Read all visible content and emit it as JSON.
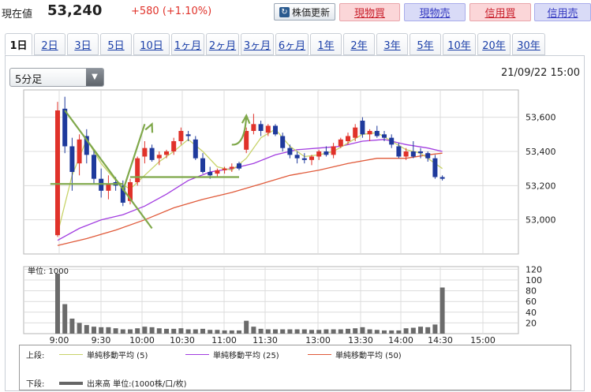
{
  "quote": {
    "label": "現在値",
    "price": "53,240",
    "change": "+580 (+1.10%)",
    "refresh_label": "株価更新",
    "buttons": [
      "現物買",
      "現物売",
      "信用買",
      "信用売"
    ]
  },
  "tabs": [
    {
      "label": "1日",
      "active": true
    },
    {
      "label": "2日"
    },
    {
      "label": "3日"
    },
    {
      "label": "5日"
    },
    {
      "label": "10日"
    },
    {
      "label": "1ヶ月"
    },
    {
      "label": "2ヶ月"
    },
    {
      "label": "3ヶ月"
    },
    {
      "label": "6ヶ月"
    },
    {
      "label": "1年"
    },
    {
      "label": "2年"
    },
    {
      "label": "3年"
    },
    {
      "label": "5年"
    },
    {
      "label": "10年"
    },
    {
      "label": "20年"
    },
    {
      "label": "30年"
    }
  ],
  "interval": "5分足",
  "datetime": "21/09/22 15:00",
  "volume_unit_label": "単位: 1000",
  "legend": {
    "upper_label": "上段:",
    "lower_label": "下段:",
    "items": [
      {
        "name": "単純移動平均 (5)",
        "color": "#c8d36a"
      },
      {
        "name": "単純移動平均 (25)",
        "color": "#a23de0"
      },
      {
        "name": "単純移動平均 (50)",
        "color": "#e05a3a"
      }
    ],
    "volume_item": "出来高 単位:(1000株/口/枚)"
  },
  "chart_data": {
    "type": "candlestick",
    "up_color": "#e0322a",
    "down_color": "#1f3a9c",
    "x_ticks": [
      "9:00",
      "9:30",
      "10:00",
      "10:30",
      "11:00",
      "11:30",
      "13:00",
      "13:30",
      "14:00",
      "14:30",
      "15:00"
    ],
    "y_ticks": [
      53000,
      53200,
      53400,
      53600
    ],
    "y_range": [
      52800,
      53760
    ],
    "volume_ticks": [
      20,
      40,
      60,
      80,
      100,
      120
    ],
    "volume_range": [
      0,
      125
    ],
    "candles": [
      {
        "o": 52910,
        "h": 53690,
        "l": 52900,
        "c": 53640
      },
      {
        "o": 53650,
        "h": 53720,
        "l": 53390,
        "c": 53430
      },
      {
        "o": 53430,
        "h": 53480,
        "l": 53170,
        "c": 53280
      },
      {
        "o": 53330,
        "h": 53500,
        "l": 53260,
        "c": 53470
      },
      {
        "o": 53490,
        "h": 53530,
        "l": 53330,
        "c": 53380
      },
      {
        "o": 53380,
        "h": 53410,
        "l": 53210,
        "c": 53240
      },
      {
        "o": 53240,
        "h": 53300,
        "l": 53130,
        "c": 53170
      },
      {
        "o": 53170,
        "h": 53260,
        "l": 53120,
        "c": 53210
      },
      {
        "o": 53220,
        "h": 53250,
        "l": 53170,
        "c": 53200
      },
      {
        "o": 53200,
        "h": 53230,
        "l": 53080,
        "c": 53100
      },
      {
        "o": 53110,
        "h": 53240,
        "l": 53090,
        "c": 53220
      },
      {
        "o": 53220,
        "h": 53370,
        "l": 53200,
        "c": 53360
      },
      {
        "o": 53370,
        "h": 53460,
        "l": 53330,
        "c": 53420
      },
      {
        "o": 53420,
        "h": 53440,
        "l": 53340,
        "c": 53350
      },
      {
        "o": 53360,
        "h": 53400,
        "l": 53320,
        "c": 53380
      },
      {
        "o": 53380,
        "h": 53410,
        "l": 53360,
        "c": 53400
      },
      {
        "o": 53400,
        "h": 53480,
        "l": 53380,
        "c": 53460
      },
      {
        "o": 53460,
        "h": 53540,
        "l": 53440,
        "c": 53520
      },
      {
        "o": 53500,
        "h": 53520,
        "l": 53460,
        "c": 53490
      },
      {
        "o": 53470,
        "h": 53490,
        "l": 53350,
        "c": 53360
      },
      {
        "o": 53360,
        "h": 53390,
        "l": 53270,
        "c": 53280
      },
      {
        "o": 53280,
        "h": 53310,
        "l": 53240,
        "c": 53260
      },
      {
        "o": 53270,
        "h": 53300,
        "l": 53250,
        "c": 53290
      },
      {
        "o": 53290,
        "h": 53310,
        "l": 53270,
        "c": 53300
      },
      {
        "o": 53300,
        "h": 53330,
        "l": 53280,
        "c": 53310
      },
      {
        "o": 53330,
        "h": 53340,
        "l": 53290,
        "c": 53300
      },
      {
        "o": 53410,
        "h": 53540,
        "l": 53390,
        "c": 53520
      },
      {
        "o": 53520,
        "h": 53620,
        "l": 53500,
        "c": 53560
      },
      {
        "o": 53560,
        "h": 53580,
        "l": 53490,
        "c": 53520
      },
      {
        "o": 53510,
        "h": 53560,
        "l": 53490,
        "c": 53550
      },
      {
        "o": 53550,
        "h": 53560,
        "l": 53490,
        "c": 53500
      },
      {
        "o": 53490,
        "h": 53510,
        "l": 53400,
        "c": 53420
      },
      {
        "o": 53420,
        "h": 53440,
        "l": 53360,
        "c": 53380
      },
      {
        "o": 53380,
        "h": 53400,
        "l": 53330,
        "c": 53360
      },
      {
        "o": 53360,
        "h": 53390,
        "l": 53330,
        "c": 53350
      },
      {
        "o": 53350,
        "h": 53380,
        "l": 53320,
        "c": 53370
      },
      {
        "o": 53370,
        "h": 53410,
        "l": 53350,
        "c": 53400
      },
      {
        "o": 53400,
        "h": 53430,
        "l": 53370,
        "c": 53380
      },
      {
        "o": 53380,
        "h": 53450,
        "l": 53360,
        "c": 53430
      },
      {
        "o": 53430,
        "h": 53480,
        "l": 53420,
        "c": 53470
      },
      {
        "o": 53460,
        "h": 53510,
        "l": 53440,
        "c": 53490
      },
      {
        "o": 53480,
        "h": 53560,
        "l": 53460,
        "c": 53540
      },
      {
        "o": 53580,
        "h": 53600,
        "l": 53480,
        "c": 53500
      },
      {
        "o": 53500,
        "h": 53530,
        "l": 53460,
        "c": 53520
      },
      {
        "o": 53520,
        "h": 53550,
        "l": 53480,
        "c": 53490
      },
      {
        "o": 53500,
        "h": 53520,
        "l": 53460,
        "c": 53480
      },
      {
        "o": 53480,
        "h": 53500,
        "l": 53420,
        "c": 53440
      },
      {
        "o": 53430,
        "h": 53450,
        "l": 53360,
        "c": 53370
      },
      {
        "o": 53370,
        "h": 53420,
        "l": 53350,
        "c": 53400
      },
      {
        "o": 53400,
        "h": 53460,
        "l": 53360,
        "c": 53370
      },
      {
        "o": 53400,
        "h": 53420,
        "l": 53360,
        "c": 53390
      },
      {
        "o": 53390,
        "h": 53400,
        "l": 53340,
        "c": 53360
      },
      {
        "o": 53360,
        "h": 53380,
        "l": 53240,
        "c": 53250
      },
      {
        "o": 53250,
        "h": 53260,
        "l": 53230,
        "c": 53240
      }
    ],
    "volume": [
      112,
      55,
      28,
      20,
      16,
      13,
      12,
      12,
      10,
      8,
      8,
      10,
      13,
      12,
      10,
      9,
      9,
      10,
      8,
      8,
      9,
      7,
      7,
      6,
      6,
      6,
      24,
      13,
      9,
      8,
      8,
      8,
      8,
      8,
      8,
      7,
      7,
      8,
      8,
      8,
      9,
      10,
      12,
      8,
      7,
      6,
      6,
      6,
      10,
      11,
      13,
      12,
      17,
      86
    ],
    "ma5": [
      [
        0,
        52920
      ],
      [
        2,
        53260
      ],
      [
        4,
        53470
      ],
      [
        6,
        53330
      ],
      [
        8,
        53230
      ],
      [
        10,
        53180
      ],
      [
        12,
        53260
      ],
      [
        14,
        53340
      ],
      [
        16,
        53400
      ],
      [
        18,
        53470
      ],
      [
        20,
        53400
      ],
      [
        22,
        53310
      ],
      [
        24,
        53290
      ],
      [
        26,
        53360
      ],
      [
        28,
        53480
      ],
      [
        30,
        53530
      ],
      [
        32,
        53430
      ],
      [
        34,
        53370
      ],
      [
        36,
        53380
      ],
      [
        38,
        53400
      ],
      [
        40,
        53450
      ],
      [
        42,
        53500
      ],
      [
        44,
        53510
      ],
      [
        46,
        53460
      ],
      [
        48,
        53410
      ],
      [
        50,
        53390
      ],
      [
        53,
        53300
      ]
    ],
    "ma25": [
      [
        0,
        52880
      ],
      [
        3,
        52950
      ],
      [
        6,
        53000
      ],
      [
        9,
        53030
      ],
      [
        12,
        53080
      ],
      [
        15,
        53150
      ],
      [
        18,
        53230
      ],
      [
        21,
        53280
      ],
      [
        24,
        53300
      ],
      [
        27,
        53330
      ],
      [
        30,
        53380
      ],
      [
        33,
        53410
      ],
      [
        36,
        53420
      ],
      [
        39,
        53430
      ],
      [
        42,
        53460
      ],
      [
        45,
        53470
      ],
      [
        48,
        53440
      ],
      [
        51,
        53420
      ],
      [
        53,
        53400
      ]
    ],
    "ma50": [
      [
        0,
        52850
      ],
      [
        4,
        52890
      ],
      [
        8,
        52940
      ],
      [
        12,
        53000
      ],
      [
        16,
        53070
      ],
      [
        20,
        53120
      ],
      [
        24,
        53160
      ],
      [
        28,
        53210
      ],
      [
        32,
        53260
      ],
      [
        36,
        53290
      ],
      [
        40,
        53330
      ],
      [
        44,
        53360
      ],
      [
        48,
        53360
      ],
      [
        51,
        53380
      ],
      [
        53,
        53390
      ]
    ],
    "annotations": {
      "support_line": [
        [
          -1,
          53210
        ],
        [
          9,
          53210
        ]
      ],
      "resistance_line": [
        [
          10,
          53250
        ],
        [
          25,
          53250
        ]
      ],
      "trend_down": [
        [
          1,
          53640
        ],
        [
          13,
          52950
        ]
      ],
      "trend_up": [
        [
          9,
          53170
        ],
        [
          12,
          53560
        ]
      ],
      "arrow_down_end": [
        13,
        52950
      ],
      "arrow_up_end": [
        13,
        53560
      ],
      "arrow_curve_start": [
        24,
        53440
      ],
      "arrow_curve_end": [
        26,
        53610
      ]
    }
  }
}
